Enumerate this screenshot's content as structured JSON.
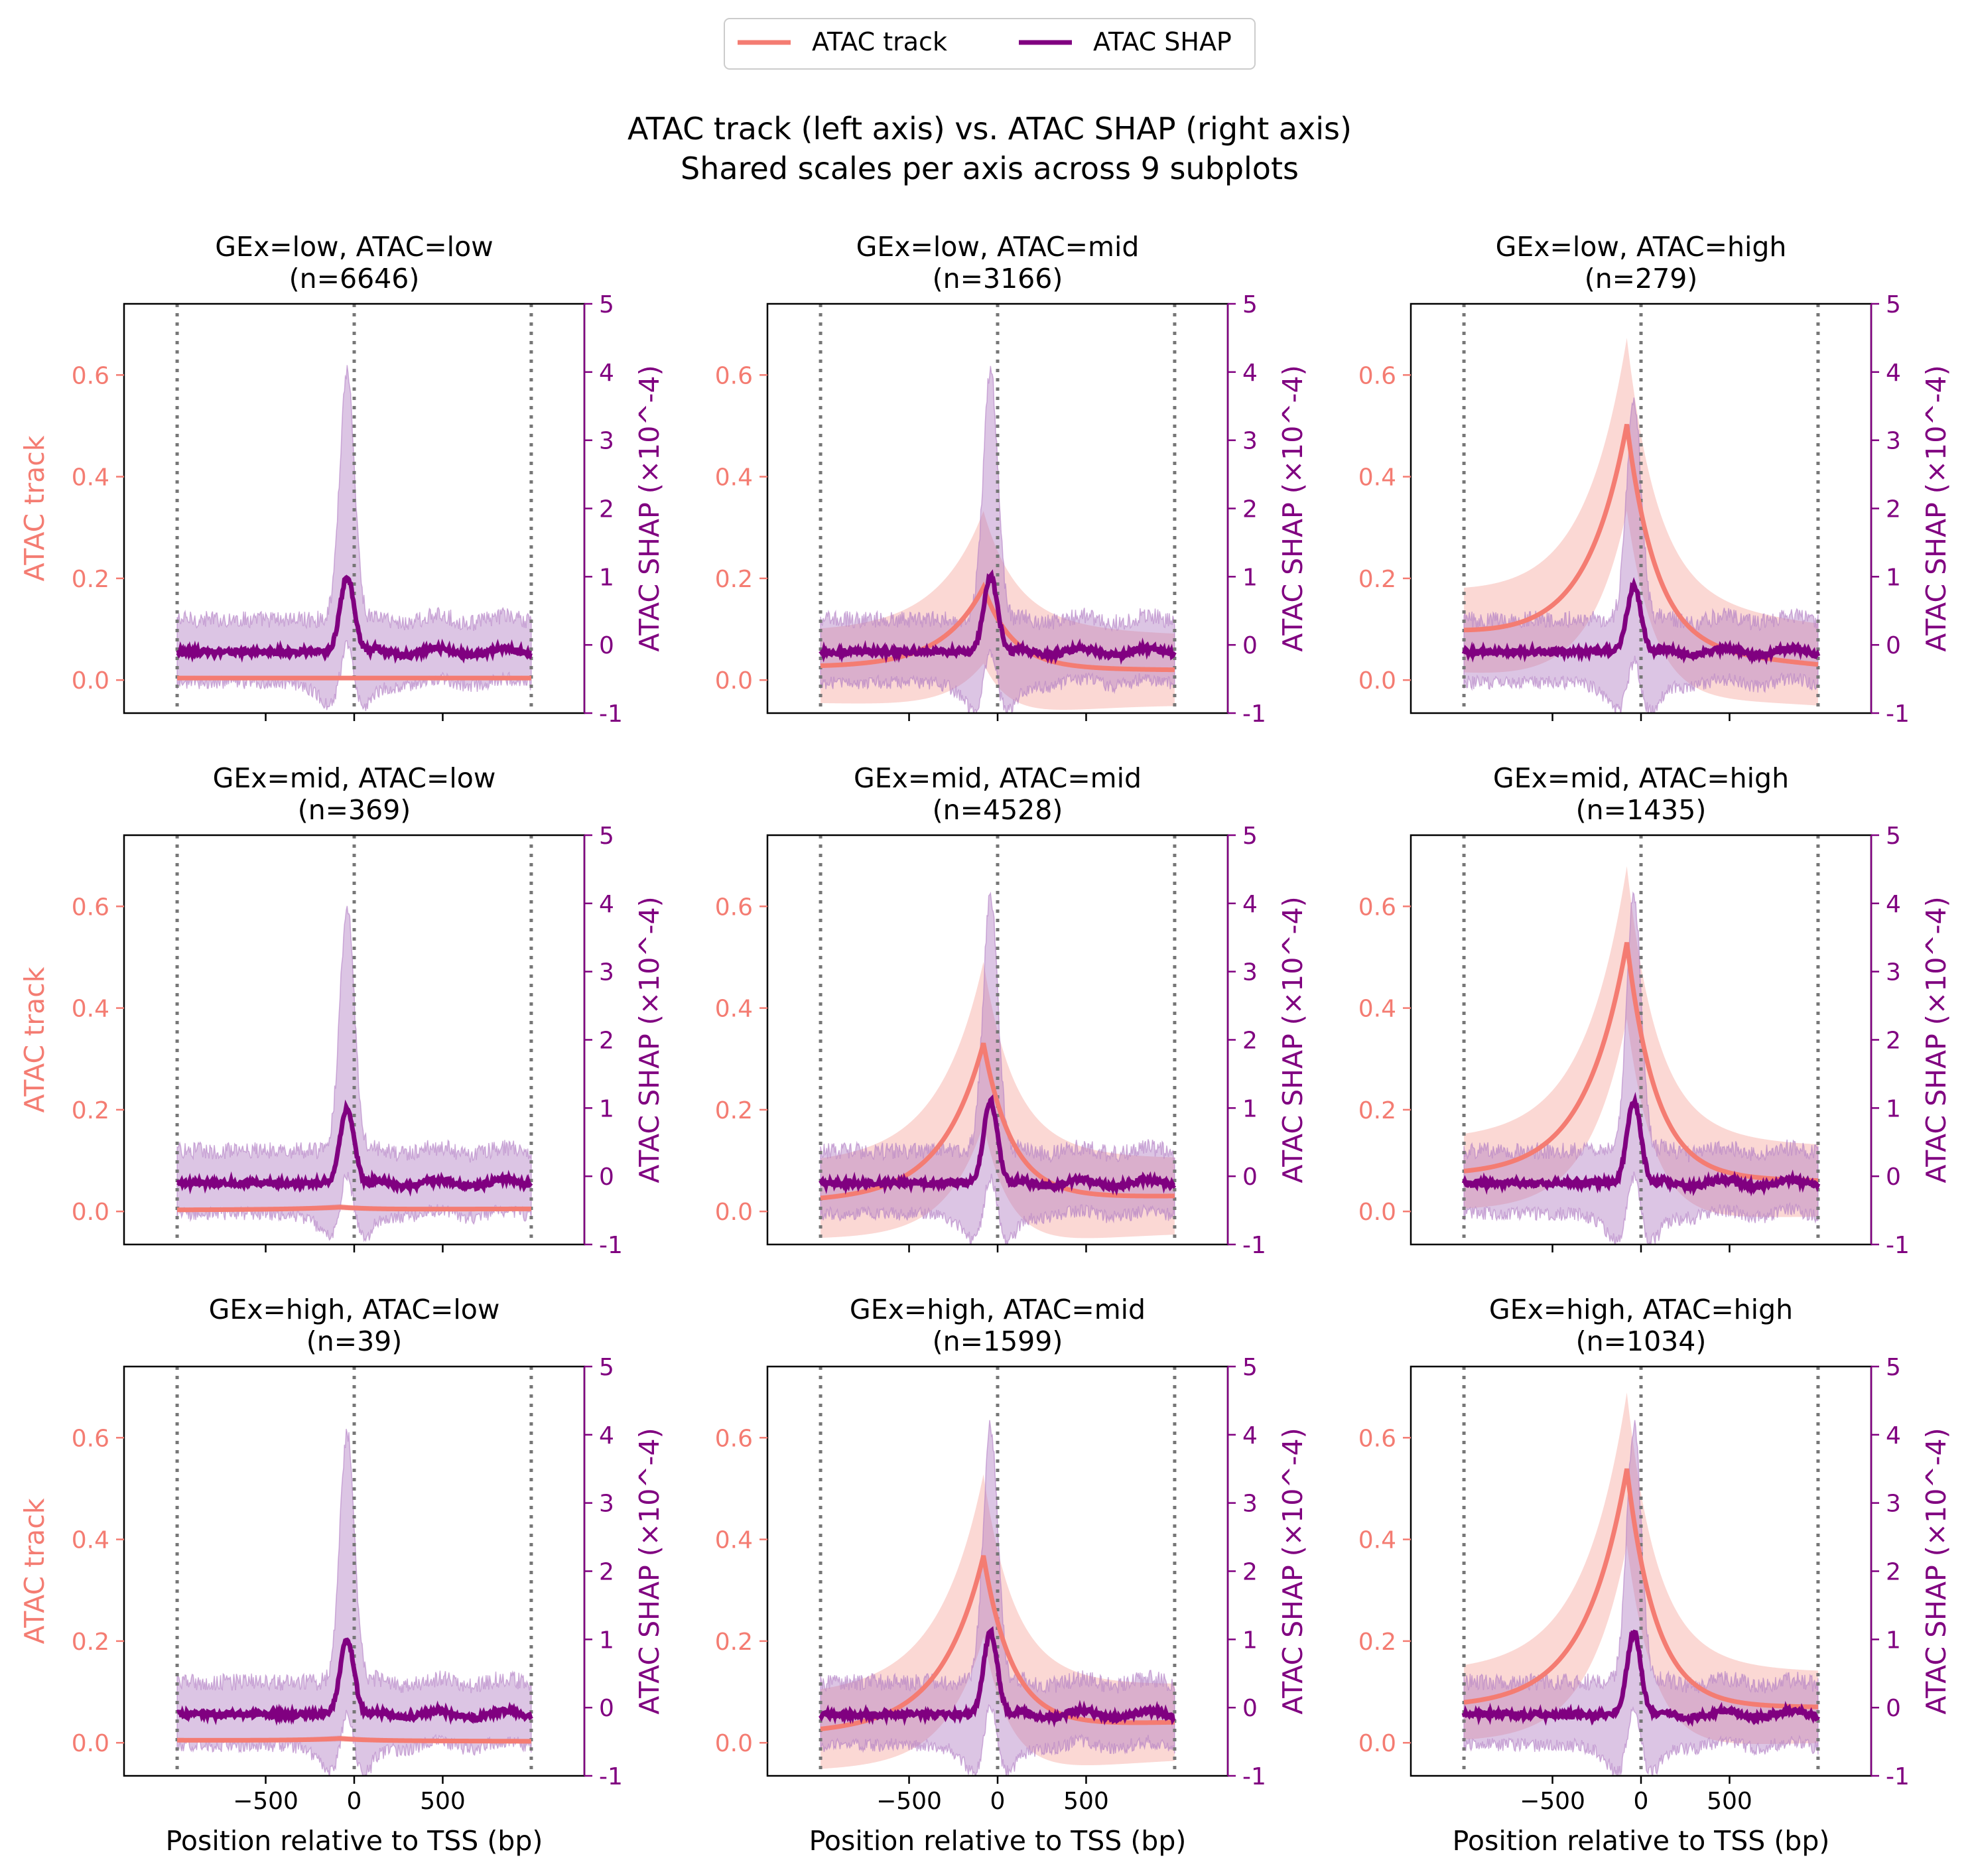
{
  "title": {
    "line1": "ATAC track (left axis) vs. ATAC SHAP (right axis)",
    "line2": "Shared scales per axis across 9 subplots"
  },
  "legend": {
    "placement": "top-center",
    "items": [
      {
        "label": "ATAC track",
        "color": "#f47c72"
      },
      {
        "label": "ATAC SHAP",
        "color": "#800080"
      }
    ]
  },
  "axes": {
    "xlabel": "Position relative to TSS (bp)",
    "ylabel_left": "ATAC track",
    "ylabel_right": "ATAC SHAP (×10^-4)",
    "x_ticks": [
      -500,
      0,
      500
    ],
    "x_tick_labels": [
      "−500",
      "0",
      "500"
    ],
    "left_ticks": [
      0.0,
      0.2,
      0.4,
      0.6
    ],
    "left_tick_labels": [
      "0.0",
      "0.2",
      "0.4",
      "0.6"
    ],
    "right_ticks": [
      -1,
      0,
      1,
      2,
      3,
      4,
      5
    ],
    "right_tick_labels": [
      "-1",
      "0",
      "1",
      "2",
      "3",
      "4",
      "5"
    ],
    "xlim": [
      -1300,
      1300
    ],
    "ylim_left": [
      -0.065,
      0.74
    ],
    "ylim_right": [
      -1,
      5
    ],
    "vlines": [
      -1000,
      0,
      1000
    ]
  },
  "colors": {
    "track": "#f47c72",
    "track_band": "#f8b8b0",
    "shap": "#800080",
    "shap_band": "#b27fc4",
    "vline": "#777777"
  },
  "chart_data": [
    {
      "type": "line",
      "title": "GEx=low, ATAC=low",
      "n_label": "(n=6646)",
      "track": {
        "peak": 0.005,
        "base_left": 0.004,
        "base_right": 0.004,
        "band": 0.003
      },
      "shap": {
        "peak": 1.0,
        "base": -0.1,
        "band_pos": 2.9,
        "band_neg": -0.9
      }
    },
    {
      "type": "line",
      "title": "GEx=low, ATAC=mid",
      "n_label": "(n=3166)",
      "track": {
        "peak": 0.19,
        "base_left": 0.025,
        "base_right": 0.02,
        "band": 0.15
      },
      "shap": {
        "peak": 1.0,
        "base": -0.1,
        "band_pos": 2.9,
        "band_neg": -1.0
      }
    },
    {
      "type": "line",
      "title": "GEx=low, ATAC=high",
      "n_label": "(n=279)",
      "track": {
        "peak": 0.53,
        "base_left": 0.09,
        "base_right": 0.03,
        "band": 0.17
      },
      "shap": {
        "peak": 0.85,
        "base": -0.1,
        "band_pos": 2.6,
        "band_neg": -1.0
      }
    },
    {
      "type": "line",
      "title": "GEx=mid, ATAC=low",
      "n_label": "(n=369)",
      "track": {
        "peak": 0.01,
        "base_left": 0.003,
        "base_right": 0.005,
        "band": 0.006
      },
      "shap": {
        "peak": 1.0,
        "base": -0.1,
        "band_pos": 2.8,
        "band_neg": -0.9
      }
    },
    {
      "type": "line",
      "title": "GEx=mid, ATAC=mid",
      "n_label": "(n=4528)",
      "track": {
        "peak": 0.34,
        "base_left": 0.02,
        "base_right": 0.03,
        "band": 0.16
      },
      "shap": {
        "peak": 1.1,
        "base": -0.1,
        "band_pos": 2.9,
        "band_neg": -1.0
      }
    },
    {
      "type": "line",
      "title": "GEx=mid, ATAC=high",
      "n_label": "(n=1435)",
      "track": {
        "peak": 0.55,
        "base_left": 0.07,
        "base_right": 0.06,
        "band": 0.15
      },
      "shap": {
        "peak": 1.1,
        "base": -0.1,
        "band_pos": 2.9,
        "band_neg": -1.0
      }
    },
    {
      "type": "line",
      "title": "GEx=high, ATAC=low",
      "n_label": "(n=39)",
      "track": {
        "peak": 0.01,
        "base_left": 0.005,
        "base_right": 0.003,
        "band": 0.006
      },
      "shap": {
        "peak": 1.0,
        "base": -0.1,
        "band_pos": 2.9,
        "band_neg": -1.0
      }
    },
    {
      "type": "line",
      "title": "GEx=high, ATAC=mid",
      "n_label": "(n=1599)",
      "track": {
        "peak": 0.38,
        "base_left": 0.02,
        "base_right": 0.04,
        "band": 0.16
      },
      "shap": {
        "peak": 1.1,
        "base": -0.1,
        "band_pos": 2.9,
        "band_neg": -1.0
      }
    },
    {
      "type": "line",
      "title": "GEx=high, ATAC=high",
      "n_label": "(n=1034)",
      "track": {
        "peak": 0.56,
        "base_left": 0.07,
        "base_right": 0.07,
        "band": 0.15
      },
      "shap": {
        "peak": 1.1,
        "base": -0.1,
        "band_pos": 2.9,
        "band_neg": -1.0
      }
    }
  ]
}
